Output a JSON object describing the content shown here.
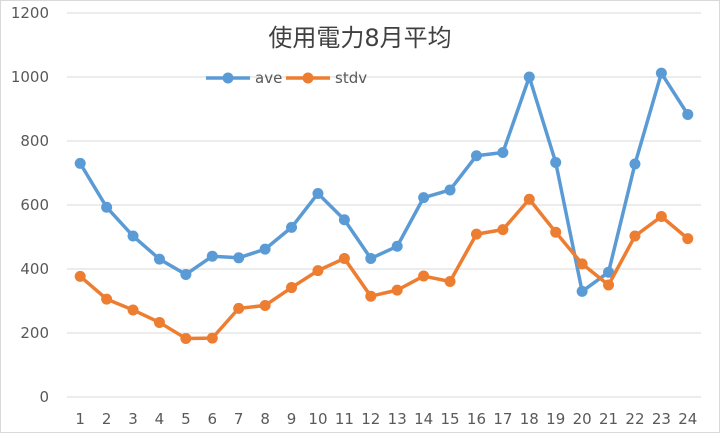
{
  "chart_data": {
    "type": "line",
    "title": "使用電力8月平均",
    "xlabel": "",
    "ylabel": "",
    "categories": [
      "1",
      "2",
      "3",
      "4",
      "5",
      "6",
      "7",
      "8",
      "9",
      "10",
      "11",
      "12",
      "13",
      "14",
      "15",
      "16",
      "17",
      "18",
      "19",
      "20",
      "21",
      "22",
      "23",
      "24"
    ],
    "ylim": [
      0,
      1200
    ],
    "yticks": [
      "0",
      "200",
      "400",
      "600",
      "800",
      "1000",
      "1200"
    ],
    "grid": true,
    "legend_position": "top",
    "series": [
      {
        "name": "ave",
        "color": "#5b9bd5",
        "values": [
          730,
          593,
          503,
          431,
          383,
          440,
          435,
          462,
          530,
          636,
          554,
          433,
          471,
          623,
          647,
          754,
          764,
          1000,
          733,
          330,
          390,
          728,
          1012,
          883
        ]
      },
      {
        "name": "stdv",
        "color": "#ed7d31",
        "values": [
          377,
          306,
          272,
          233,
          183,
          184,
          277,
          286,
          342,
          395,
          433,
          315,
          334,
          378,
          361,
          509,
          523,
          618,
          515,
          416,
          350,
          503,
          564,
          495
        ]
      }
    ]
  }
}
